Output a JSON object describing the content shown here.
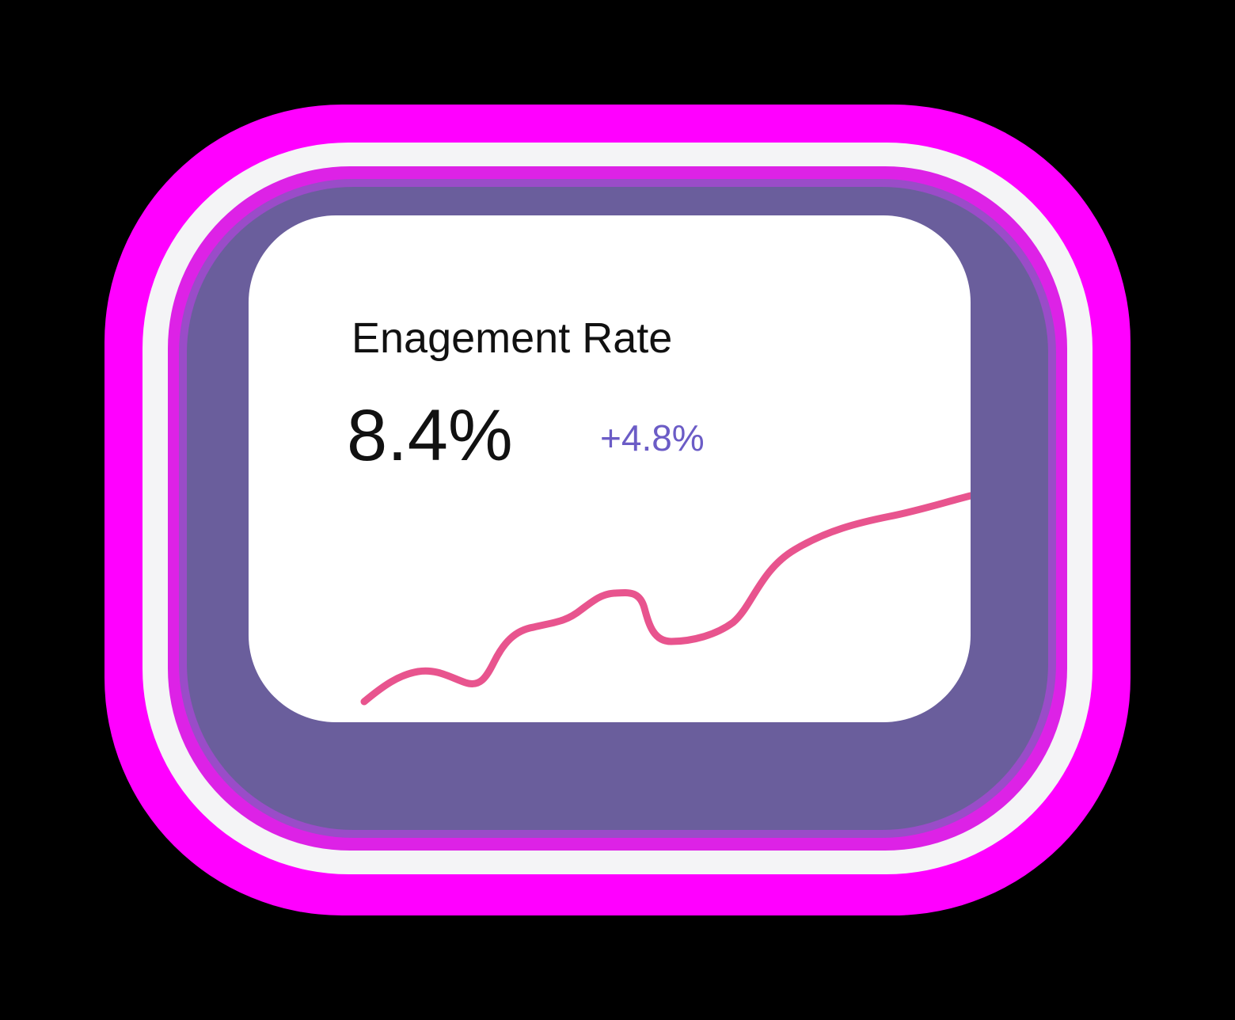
{
  "widget": {
    "title": "Enagement Rate",
    "value": "8.4%",
    "change": "+4.8%",
    "colors": {
      "background": "#000000",
      "glow": "#ff00ff",
      "card": "#ffffff",
      "change_text": "#6b5cc6",
      "line": "#e8548e"
    }
  }
}
